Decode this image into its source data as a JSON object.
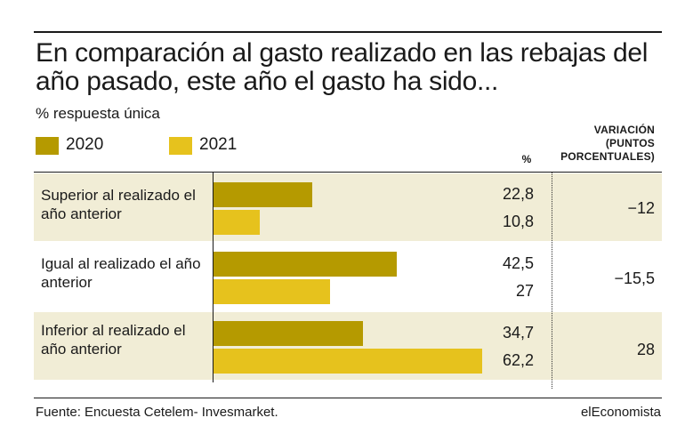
{
  "title": "En comparación al gasto realizado en las rebajas del año pasado, este año el gasto ha sido...",
  "subtitle": "% respuesta única",
  "colors": {
    "s2020": "#b59a00",
    "s2021": "#e6c21d",
    "row_band": "#f1edd6"
  },
  "legend": [
    {
      "label": "2020",
      "color": "#b59a00"
    },
    {
      "label": "2021",
      "color": "#e6c21d"
    }
  ],
  "headers": {
    "pct": "%",
    "variation": "VARIACIÓN (PUNTOS PORCENTUALES)"
  },
  "chart_data": {
    "type": "bar",
    "orientation": "horizontal",
    "categories": [
      "Superior al realizado el año anterior",
      "Igual al realizado el año anterior",
      "Inferior al realizado el año anterior"
    ],
    "series": [
      {
        "name": "2020",
        "values": [
          22.8,
          42.5,
          34.7
        ],
        "labels": [
          "22,8",
          "42,5",
          "34,7"
        ]
      },
      {
        "name": "2021",
        "values": [
          10.8,
          27,
          62.2
        ],
        "labels": [
          "10,8",
          "27",
          "62,2"
        ]
      }
    ],
    "variation": [
      "−12",
      "−15,5",
      "28"
    ],
    "xlim": [
      0,
      62.2
    ]
  },
  "footer": {
    "source": "Fuente: Encuesta Cetelem- Invesmarket.",
    "brand": "elEconomista"
  }
}
